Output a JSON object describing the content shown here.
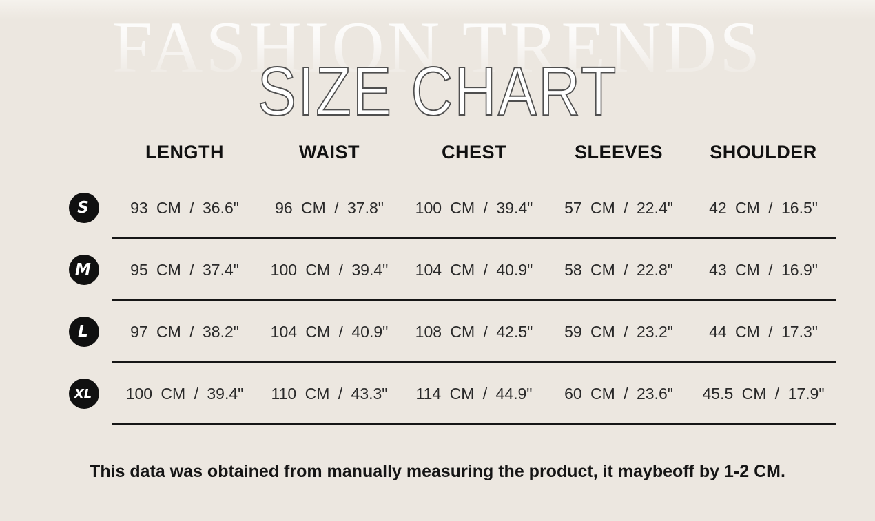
{
  "page": {
    "background_color": "#ece7e0",
    "accent_color": "#101010"
  },
  "header": {
    "watermark": "FASHION TRENDS",
    "title": "SIZE CHART"
  },
  "table": {
    "columns": [
      "LENGTH",
      "WAIST",
      "CHEST",
      "SLEEVES",
      "SHOULDER"
    ],
    "rows": [
      {
        "size": "S",
        "values": [
          "93 CM / 36.6\"",
          "96 CM / 37.8\"",
          "100 CM / 39.4\"",
          "57 CM / 22.4\"",
          "42 CM / 16.5\""
        ]
      },
      {
        "size": "M",
        "values": [
          "95 CM / 37.4\"",
          "100 CM / 39.4\"",
          "104 CM / 40.9\"",
          "58 CM / 22.8\"",
          "43 CM / 16.9\""
        ]
      },
      {
        "size": "L",
        "values": [
          "97 CM / 38.2\"",
          "104 CM / 40.9\"",
          "108 CM / 42.5\"",
          "59 CM / 23.2\"",
          "44 CM / 17.3\""
        ]
      },
      {
        "size": "XL",
        "values": [
          "100 CM / 39.4\"",
          "110 CM / 43.3\"",
          "114 CM / 44.9\"",
          "60 CM / 23.6\"",
          "45.5 CM / 17.9\""
        ]
      }
    ]
  },
  "footer": {
    "note": "This data was obtained from manually measuring the product, it maybeoff by 1-2 CM."
  },
  "chart_data": {
    "type": "table",
    "title": "SIZE CHART",
    "subtitle_watermark": "FASHION TRENDS",
    "row_labels": [
      "S",
      "M",
      "L",
      "XL"
    ],
    "columns": [
      "LENGTH",
      "WAIST",
      "CHEST",
      "SLEEVES",
      "SHOULDER"
    ],
    "values_cm": [
      [
        93,
        96,
        100,
        57,
        42
      ],
      [
        95,
        100,
        104,
        58,
        43
      ],
      [
        97,
        104,
        108,
        59,
        44
      ],
      [
        100,
        110,
        114,
        60,
        45.5
      ]
    ],
    "values_inches": [
      [
        36.6,
        37.8,
        39.4,
        22.4,
        16.5
      ],
      [
        37.4,
        39.4,
        40.9,
        22.8,
        16.9
      ],
      [
        38.2,
        40.9,
        42.5,
        23.2,
        17.3
      ],
      [
        39.4,
        43.3,
        44.9,
        23.6,
        17.9
      ]
    ],
    "units": "CM / inches",
    "note": "This data was obtained from manually measuring the product, it maybeoff by 1-2 CM."
  }
}
